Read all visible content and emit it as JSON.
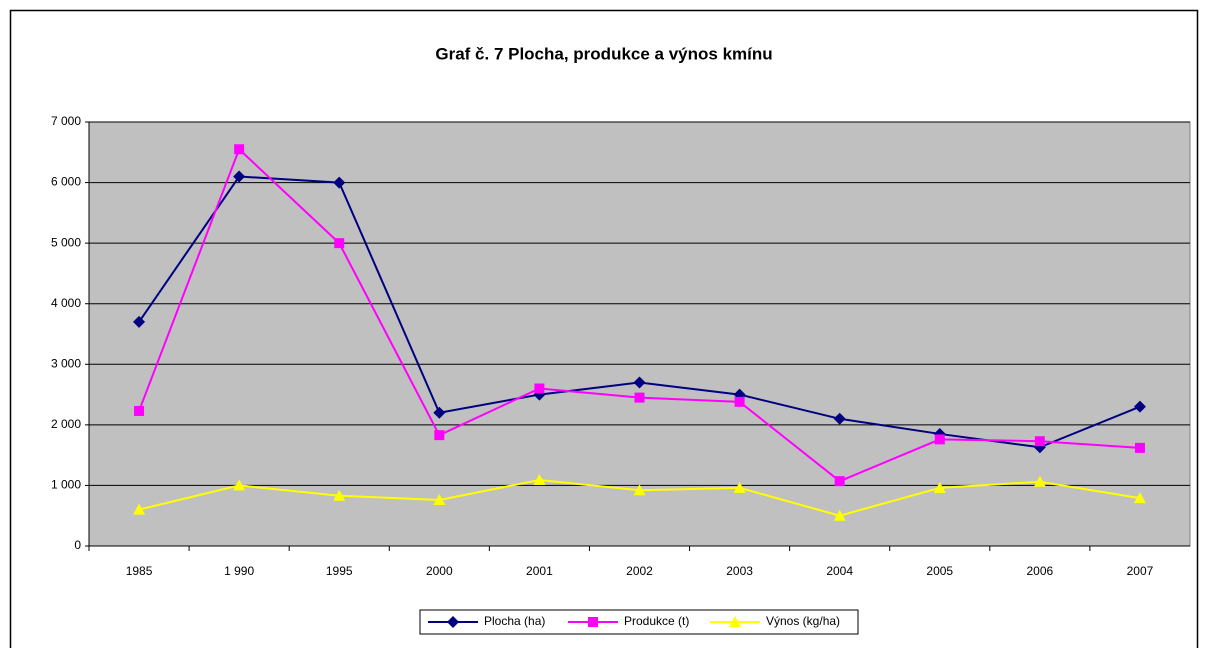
{
  "chart_data": {
    "type": "line",
    "title": "Graf č. 7  Plocha, produkce a výnos kmínu",
    "categories": [
      "1985",
      "1 990",
      "1995",
      "2000",
      "2001",
      "2002",
      "2003",
      "2004",
      "2005",
      "2006",
      "2007"
    ],
    "series": [
      {
        "name": "Plocha (ha)",
        "color": "#000080",
        "marker": "diamond",
        "values": [
          3700,
          6100,
          6000,
          2200,
          2500,
          2700,
          2500,
          2100,
          1850,
          1630,
          2300
        ]
      },
      {
        "name": "Produkce (t)",
        "color": "#ff00ff",
        "marker": "square",
        "values": [
          2230,
          6550,
          5000,
          1830,
          2600,
          2450,
          2380,
          1070,
          1760,
          1730,
          1620
        ]
      },
      {
        "name": "Výnos (kg/ha)",
        "color": "#ffff00",
        "marker": "triangle",
        "values": [
          600,
          1000,
          830,
          760,
          1090,
          920,
          960,
          500,
          960,
          1060,
          790
        ]
      }
    ],
    "ylim": [
      0,
      7000
    ],
    "yticks": [
      0,
      {
        "value": 1000,
        "label": "1 000"
      },
      {
        "value": 2000,
        "label": "2 000"
      },
      {
        "value": 3000,
        "label": "3 000"
      },
      {
        "value": 4000,
        "label": "4 000"
      },
      {
        "value": 5000,
        "label": "5 000"
      },
      {
        "value": 6000,
        "label": "6 000"
      },
      {
        "value": 7000,
        "label": "7 000"
      }
    ],
    "grid": true,
    "legend": "bottom",
    "plot_background": "#c0c0c0"
  }
}
